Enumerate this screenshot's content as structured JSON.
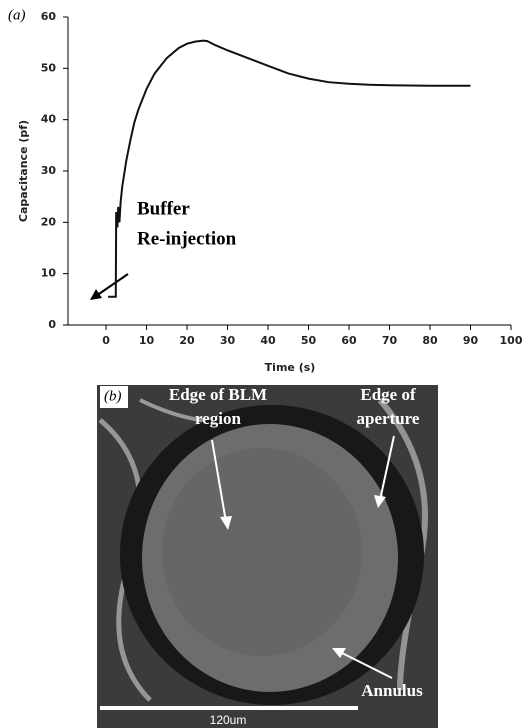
{
  "chart_data": {
    "type": "line",
    "panel_label": "(a)",
    "y_label": "Capacitance (pf)",
    "x_label": "Time (s)",
    "annotation": [
      "Buffer",
      "Re-injection"
    ],
    "x": [
      0.5,
      2.4,
      2.5,
      2.8,
      3.0,
      3.3,
      3.6,
      4,
      5,
      6,
      7,
      8,
      10,
      12,
      15,
      18,
      20,
      22,
      24,
      25,
      27,
      30,
      35,
      40,
      45,
      50,
      55,
      60,
      65,
      70,
      80,
      90
    ],
    "series": [
      {
        "color": "#111111",
        "values": [
          5.5,
          5.5,
          22,
          19,
          23,
          20,
          24,
          27,
          32,
          36,
          39.5,
          42,
          46,
          49,
          52,
          54,
          54.8,
          55.2,
          55.4,
          55.3,
          54.5,
          53.5,
          52,
          50.5,
          49,
          48,
          47.3,
          47,
          46.8,
          46.7,
          46.6,
          46.6
        ]
      }
    ],
    "xlim": [
      -9.4,
      100
    ],
    "xticks": [
      0,
      10,
      20,
      30,
      40,
      50,
      60,
      70,
      80,
      90,
      100
    ],
    "ylim": [
      0,
      60
    ],
    "yticks": [
      0,
      10,
      20,
      30,
      40,
      50,
      60
    ]
  },
  "micrograph": {
    "panel_label": "(b)",
    "labels": [
      [
        "Edge of BLM",
        "region"
      ],
      [
        "Edge of",
        "aperture"
      ],
      [
        "Annulus"
      ]
    ],
    "scale_bar": "120um"
  }
}
